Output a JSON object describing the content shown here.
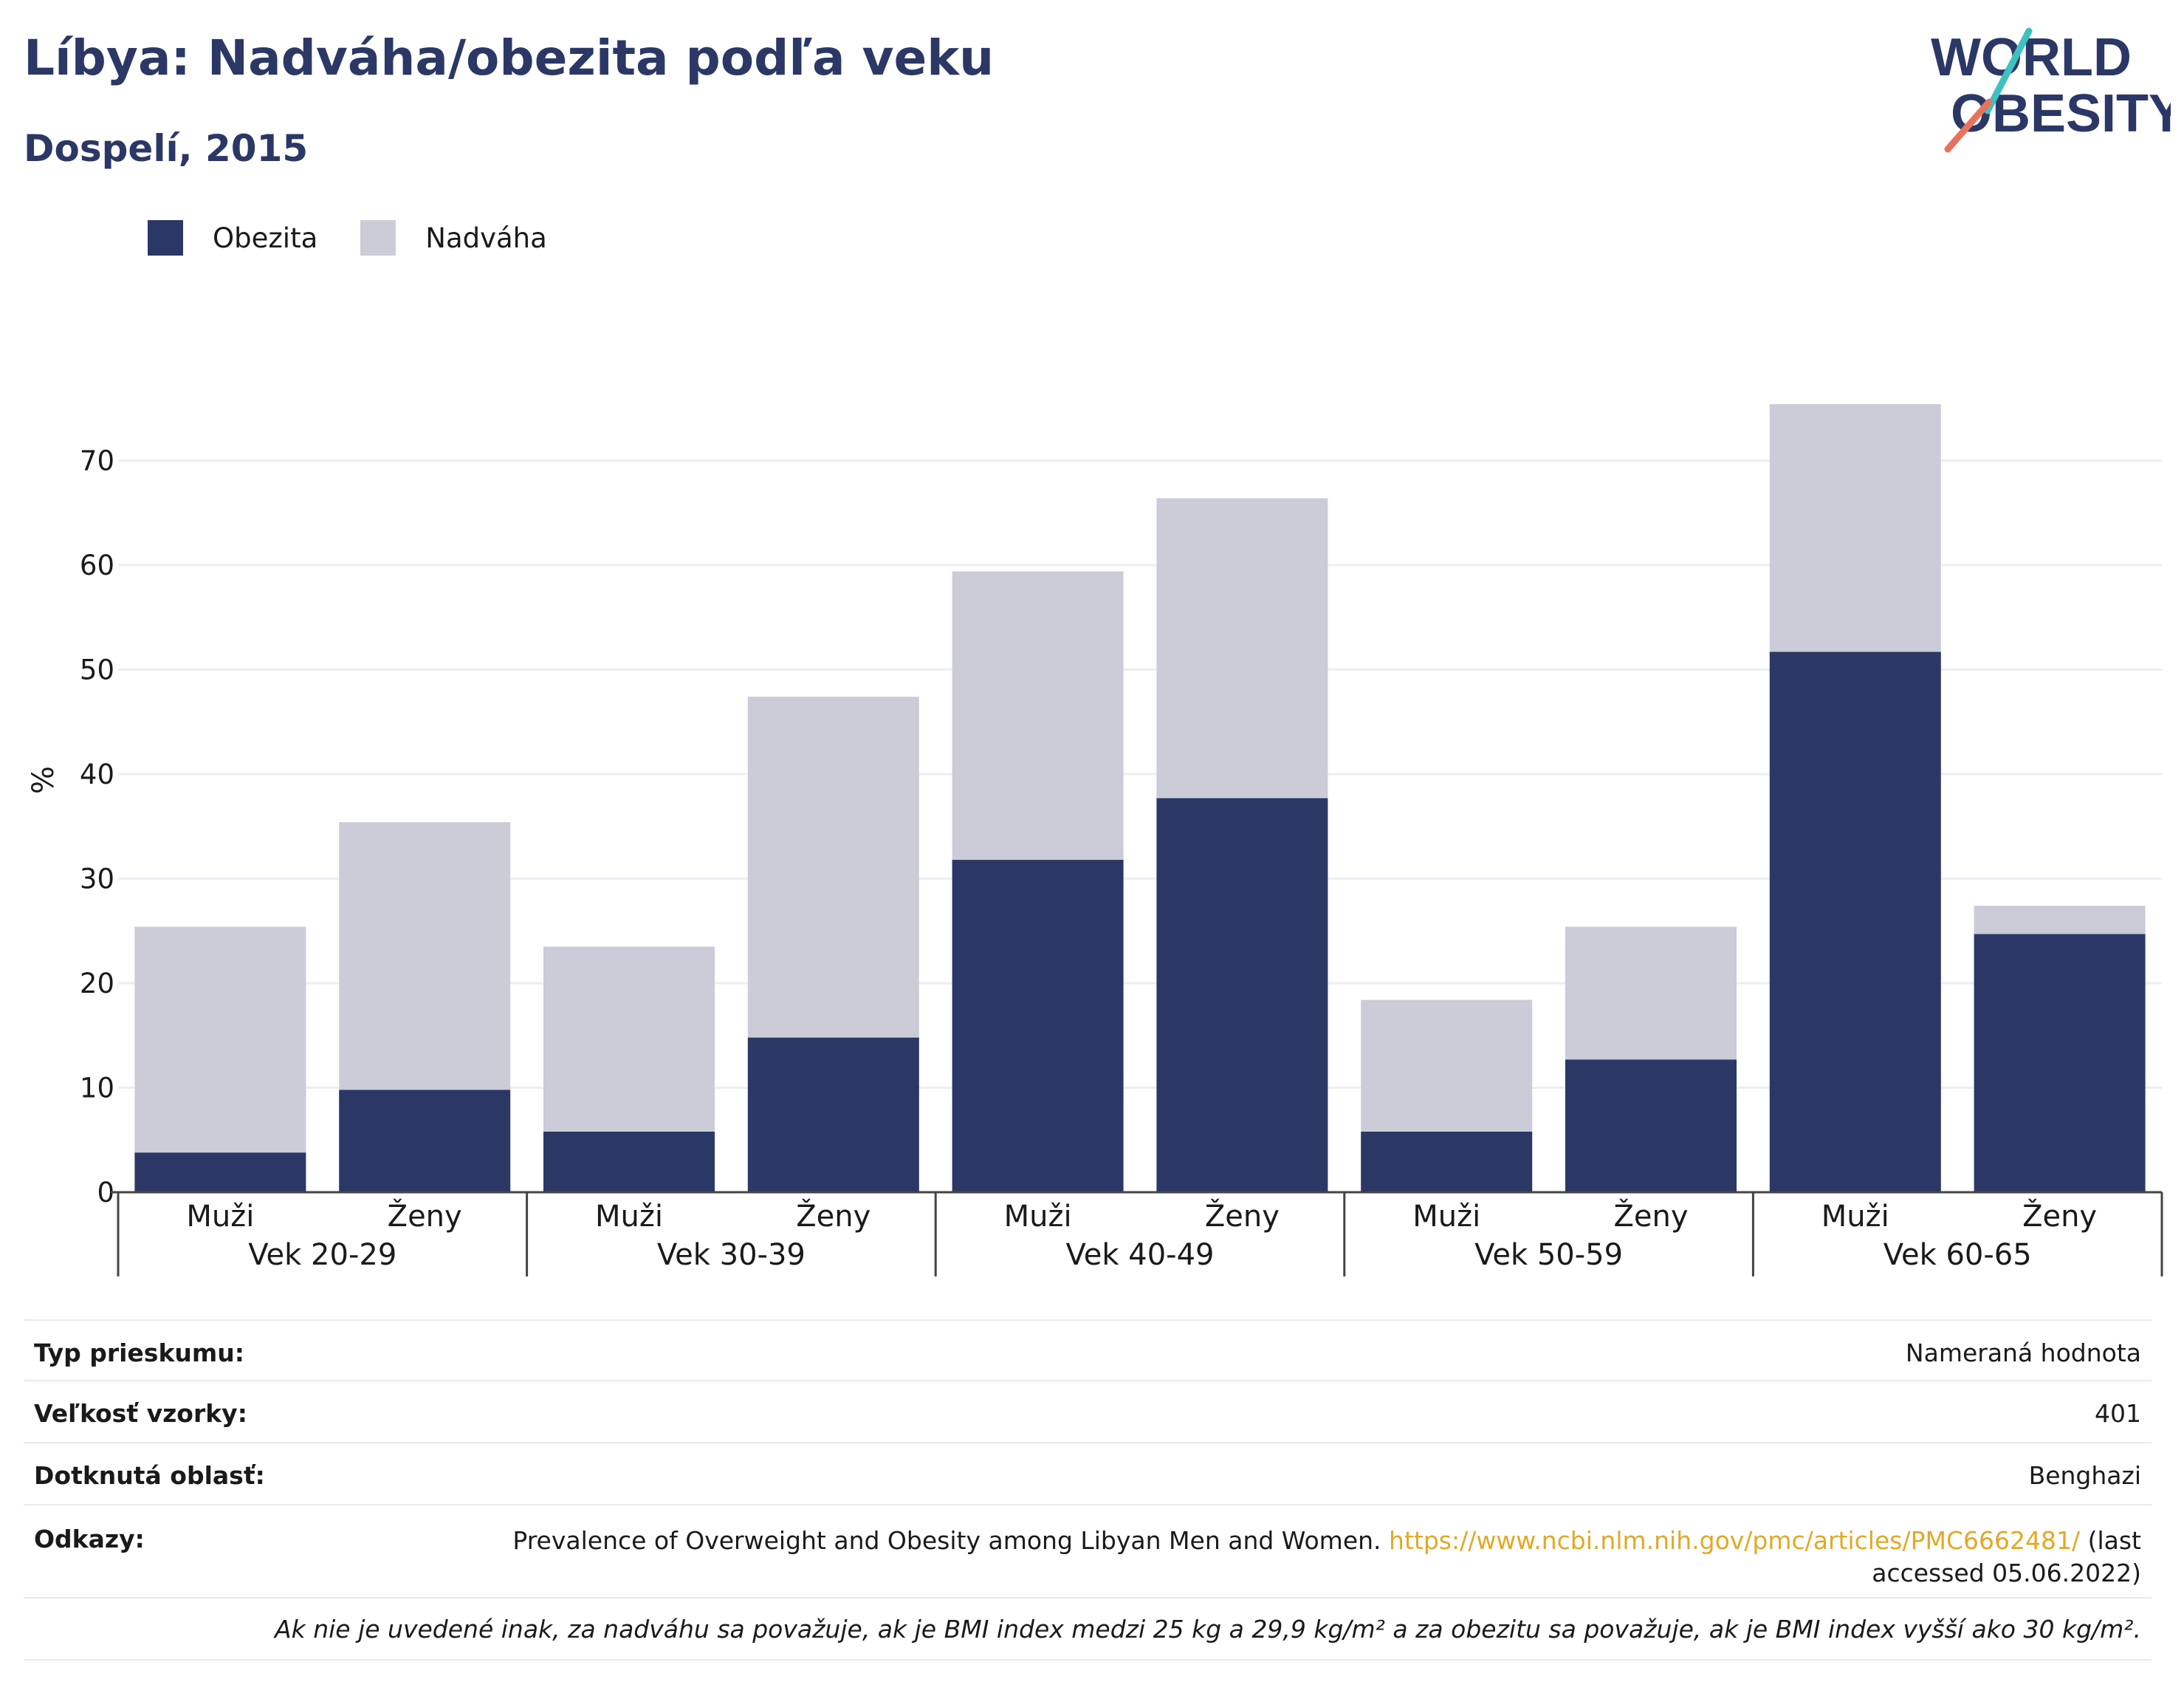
{
  "header": {
    "title": "Líbya: Nadváha/obezita podľa veku",
    "subtitle": "Dospelí, 2015"
  },
  "logo": {
    "line1": "WORLD",
    "line2": "OBESITY",
    "colors": {
      "text": "#2b3866",
      "accent_teal": "#3fc1c0",
      "accent_coral": "#e8735c"
    }
  },
  "legend": [
    {
      "label": "Obezita",
      "color": "#2b3866"
    },
    {
      "label": "Nadváha",
      "color": "#cbccd8"
    }
  ],
  "chart_data": {
    "type": "bar",
    "stacked": true,
    "ylabel": "%",
    "ylim": [
      0,
      75
    ],
    "yticks": [
      0,
      10,
      20,
      30,
      40,
      50,
      60,
      70
    ],
    "grid": true,
    "legend_position": "top-left",
    "groups": [
      "Vek 20-29",
      "Vek 30-39",
      "Vek 40-49",
      "Vek 50-59",
      "Vek 60-65"
    ],
    "subcategories": [
      "Muži",
      "Ženy"
    ],
    "series": [
      {
        "name": "Obezita",
        "color": "#2b3866",
        "values": [
          3.8,
          9.8,
          5.8,
          14.8,
          31.8,
          37.7,
          5.8,
          12.7,
          51.7,
          24.7
        ]
      },
      {
        "name": "Nadváha",
        "color": "#cbccd8",
        "values": [
          21.6,
          25.6,
          17.7,
          32.6,
          27.6,
          28.7,
          12.6,
          12.7,
          23.7,
          2.7
        ]
      }
    ]
  },
  "info": {
    "survey_type": {
      "label": "Typ prieskumu:",
      "value": "Nameraná hodnota"
    },
    "sample_size": {
      "label": "Veľkosť vzorky:",
      "value": "401"
    },
    "area": {
      "label": "Dotknutá oblasť:",
      "value": "Benghazi"
    },
    "references": {
      "label": "Odkazy:",
      "text": "Prevalence of Overweight and Obesity among Libyan Men and Women.",
      "url": "https://www.ncbi.nlm.nih.gov/pmc/articles/PMC6662481/",
      "suffix_line1": "(last",
      "suffix_line2": "accessed 05.06.2022)"
    },
    "note": "Ak nie je uvedené inak, za nadváhu sa považuje, ak je BMI index medzi 25 kg a 29,9 kg/m² a za obezitu sa považuje, ak je BMI index vyšší ako 30 kg/m²."
  }
}
